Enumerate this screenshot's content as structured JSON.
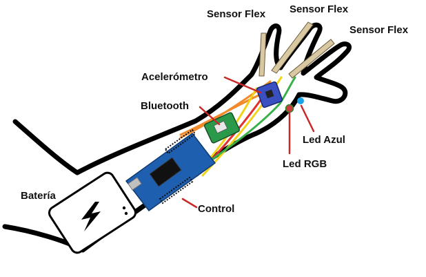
{
  "labels": {
    "sensor_flex_1": "Sensor Flex",
    "sensor_flex_2": "Sensor Flex",
    "sensor_flex_3": "Sensor Flex",
    "accelerometer": "Acelerómetro",
    "bluetooth": "Bluetooth",
    "led_azul": "Led Azul",
    "led_rgb": "Led RGB",
    "bateria": "Batería",
    "control": "Control"
  },
  "colors": {
    "outline": "#000000",
    "board": "#1f5fb0",
    "bluetooth_module": "#2a9a4a",
    "accelerometer_module": "#3a4fc0",
    "flex_sensor": "#d9c9a2",
    "wire_orange": "#f08a2a",
    "wire_yellow": "#f3d21a",
    "wire_red": "#e03030",
    "wire_green": "#38b04a",
    "leader_line": "#c82828",
    "led_blue": "#1aa3e8",
    "led_rgb": "#c83c3c"
  },
  "icons": {
    "battery": "battery-bolt-icon"
  }
}
